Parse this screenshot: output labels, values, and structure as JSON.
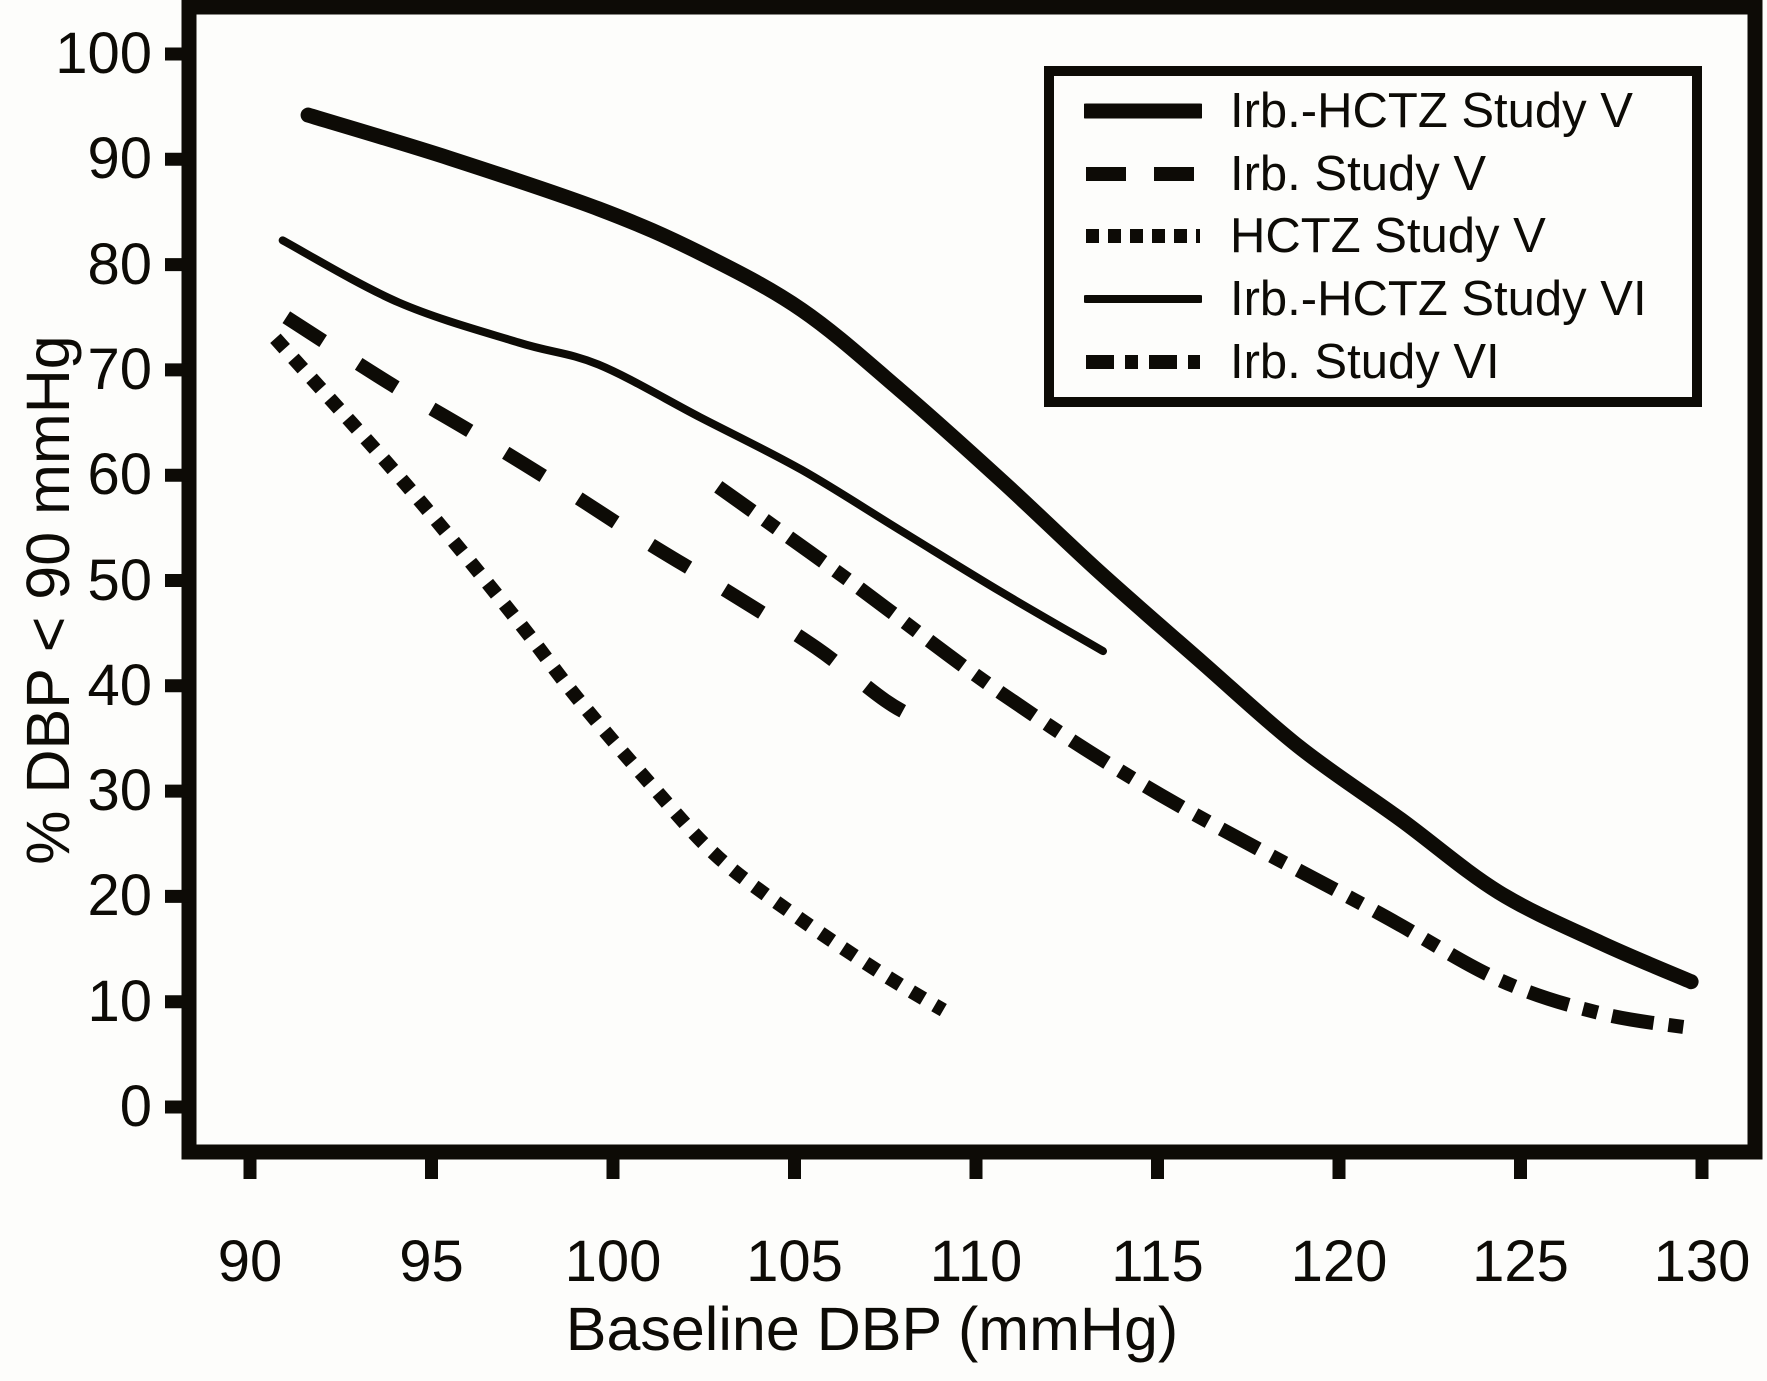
{
  "colors": {
    "ink": "#0d0b06",
    "paper": "#fdfdfb"
  },
  "chart_data": {
    "type": "line",
    "title": "",
    "xlabel": "Baseline DBP (mmHg)",
    "ylabel": "% DBP < 90 mmHg",
    "xlim": [
      90,
      130
    ],
    "ylim": [
      0,
      100
    ],
    "grid": false,
    "legend_position": "top-right",
    "x_ticks": [
      90,
      95,
      100,
      105,
      110,
      115,
      120,
      125,
      130
    ],
    "x_tick_labels": [
      "90",
      "95",
      "100",
      "105",
      "110",
      "115",
      "120",
      "125",
      "130"
    ],
    "y_ticks": [
      0,
      10,
      20,
      30,
      40,
      50,
      60,
      70,
      80,
      90,
      100
    ],
    "y_tick_labels": [
      "0",
      "10",
      "20",
      "30",
      "40",
      "50",
      "60",
      "70",
      "80",
      "90",
      "100"
    ],
    "series": [
      {
        "name": "Irb.-HCTZ Study V",
        "style": "solid-thick",
        "points": [
          [
            91.6,
            94.2
          ],
          [
            95.5,
            90.1
          ],
          [
            99.6,
            85.3
          ],
          [
            102.4,
            81.1
          ],
          [
            105.2,
            75.7
          ],
          [
            107.9,
            68.1
          ],
          [
            110.7,
            59.5
          ],
          [
            113.4,
            50.8
          ],
          [
            116.2,
            42.3
          ],
          [
            118.9,
            34.2
          ],
          [
            121.7,
            27.3
          ],
          [
            124.4,
            20.4
          ],
          [
            127.2,
            15.6
          ],
          [
            129.7,
            11.9
          ]
        ]
      },
      {
        "name": "Irb. Study V",
        "style": "dashed",
        "points": [
          [
            91.0,
            75.0
          ],
          [
            93.9,
            68.6
          ],
          [
            96.2,
            63.9
          ],
          [
            98.6,
            58.8
          ],
          [
            100.9,
            53.7
          ],
          [
            103.0,
            49.3
          ],
          [
            105.6,
            43.6
          ],
          [
            107.5,
            38.6
          ],
          [
            108.5,
            36.7
          ]
        ]
      },
      {
        "name": "HCTZ Study V",
        "style": "dotted",
        "points": [
          [
            90.7,
            73.0
          ],
          [
            94.3,
            59.1
          ],
          [
            97.3,
            46.5
          ],
          [
            99.0,
            38.9
          ],
          [
            101.1,
            30.4
          ],
          [
            102.9,
            23.7
          ],
          [
            105.1,
            18.0
          ],
          [
            107.4,
            12.7
          ],
          [
            109.1,
            9.2
          ]
        ]
      },
      {
        "name": "Irb.-HCTZ Study VI",
        "style": "solid-thin",
        "points": [
          [
            90.9,
            82.3
          ],
          [
            94.1,
            76.4
          ],
          [
            97.4,
            72.6
          ],
          [
            99.6,
            70.5
          ],
          [
            102.4,
            65.5
          ],
          [
            105.2,
            60.5
          ],
          [
            107.9,
            54.8
          ],
          [
            110.7,
            48.9
          ],
          [
            113.5,
            43.3
          ]
        ]
      },
      {
        "name": "Irb. Study VI",
        "style": "dash-dot",
        "points": [
          [
            102.9,
            58.9
          ],
          [
            106.5,
            50.0
          ],
          [
            110.7,
            39.3
          ],
          [
            115.1,
            29.6
          ],
          [
            121.1,
            18.4
          ],
          [
            124.4,
            12.1
          ],
          [
            127.2,
            8.9
          ],
          [
            129.7,
            7.5
          ]
        ]
      }
    ]
  }
}
